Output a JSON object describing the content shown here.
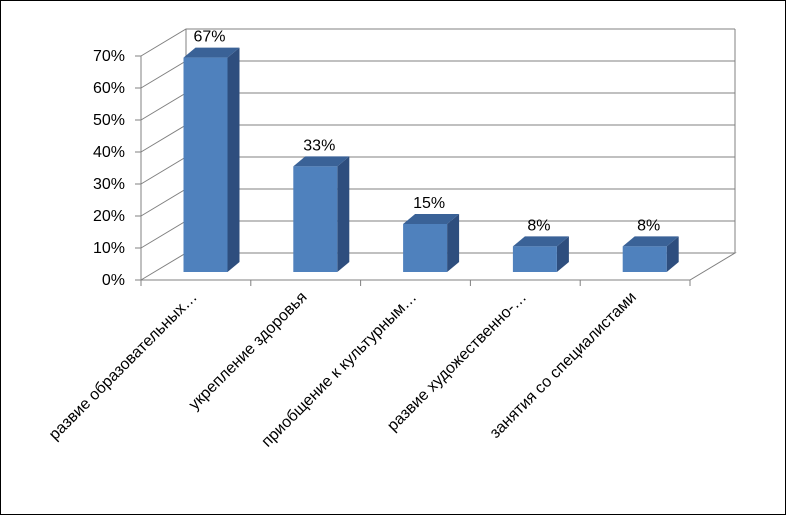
{
  "chart_data": {
    "type": "bar",
    "style": "3d-clustered-column",
    "title": "",
    "xlabel": "",
    "ylabel": "",
    "ylim": [
      0,
      70
    ],
    "yticks": [
      "0%",
      "10%",
      "20%",
      "30%",
      "40%",
      "50%",
      "60%",
      "70%"
    ],
    "grid": true,
    "legend": "none",
    "categories": [
      "развие образовательных…",
      "укрепление здоровья",
      "приобщение к культурным…",
      "развие художественно-…",
      "занятия со специалистами"
    ],
    "values": [
      67,
      33,
      15,
      8,
      8
    ],
    "data_labels": [
      "67%",
      "33%",
      "15%",
      "8%",
      "8%"
    ],
    "colors": {
      "bar_front": "#4F81BD",
      "bar_side": "#2E4E7E",
      "bar_top": "#3A6297",
      "grid": "#808080"
    }
  }
}
